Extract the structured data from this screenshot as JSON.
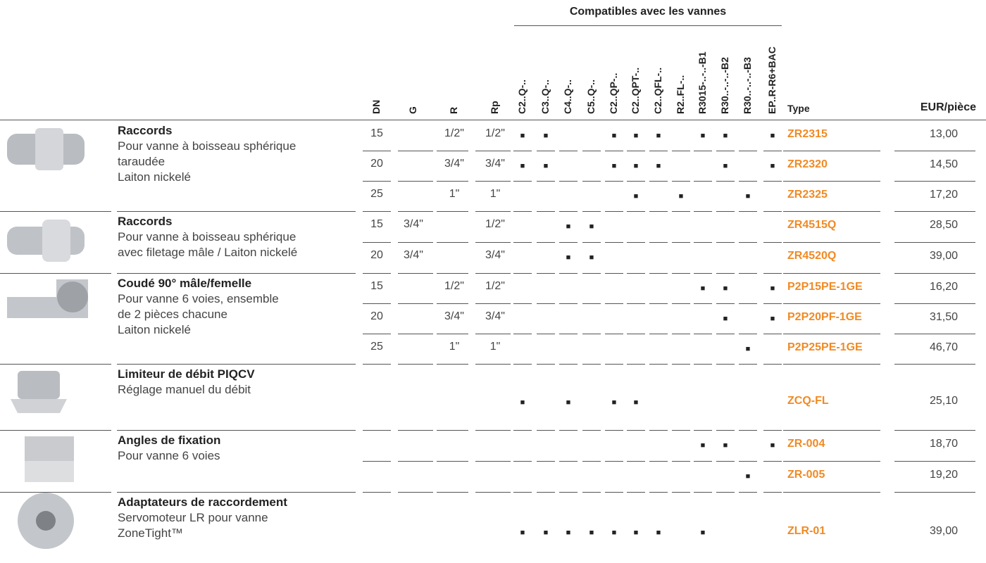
{
  "header": {
    "group_title": "Compatibles avec les vannes",
    "columns": [
      "DN",
      "G",
      "R",
      "Rp"
    ],
    "valves": [
      "C2..Q-..",
      "C3..Q-..",
      "C4..Q-..",
      "C5..Q-..",
      "C2..QP-..",
      "C2..QPT-..",
      "C2..QFL-..",
      "R2..FL-..",
      "R3015-..-..-B1",
      "R30..-..-..-B2",
      "R30..-..-..-B3",
      "EP..R-R6+BAC"
    ],
    "type": "Type",
    "price": "EUR/pièce"
  },
  "groups": [
    {
      "name": "Raccords",
      "description": [
        "Pour vanne à boisseau sphérique",
        "taraudée",
        "Laiton nickelé"
      ],
      "rows": [
        {
          "cells": [
            "15",
            null,
            "1/2\"",
            "1/2\""
          ],
          "compat": [
            "■",
            "■",
            null,
            null,
            "■",
            "■",
            "■",
            null,
            "■",
            "■",
            null,
            "■"
          ],
          "type": "ZR2315",
          "price": "13,00"
        },
        {
          "cells": [
            "20",
            null,
            "3/4\"",
            "3/4\""
          ],
          "compat": [
            "■",
            "■",
            null,
            null,
            "■",
            "■",
            "■",
            null,
            null,
            "■",
            null,
            "■"
          ],
          "type": "ZR2320",
          "price": "14,50"
        },
        {
          "cells": [
            "25",
            null,
            "1\"",
            "1\""
          ],
          "compat": [
            null,
            null,
            null,
            null,
            null,
            "■",
            null,
            "■",
            null,
            null,
            "■",
            null
          ],
          "type": "ZR2325",
          "price": "17,20"
        }
      ]
    },
    {
      "name": "Raccords",
      "description": [
        "Pour vanne à boisseau sphérique",
        "avec filetage mâle / Laiton nickelé"
      ],
      "rows": [
        {
          "cells": [
            "15",
            "3/4\"",
            null,
            "1/2\""
          ],
          "compat": [
            null,
            null,
            "■",
            "■",
            null,
            null,
            null,
            null,
            null,
            null,
            null,
            null
          ],
          "type": "ZR4515Q",
          "price": "28,50"
        },
        {
          "cells": [
            "20",
            "3/4\"",
            null,
            "3/4\""
          ],
          "compat": [
            null,
            null,
            "■",
            "■",
            null,
            null,
            null,
            null,
            null,
            null,
            null,
            null
          ],
          "type": "ZR4520Q",
          "price": "39,00"
        }
      ]
    },
    {
      "name": "Coudé 90° mâle/femelle",
      "description": [
        "Pour vanne 6 voies, ensemble",
        "de 2 pièces chacune",
        "Laiton nickelé"
      ],
      "rows": [
        {
          "cells": [
            "15",
            null,
            "1/2\"",
            "1/2\""
          ],
          "compat": [
            null,
            null,
            null,
            null,
            null,
            null,
            null,
            null,
            "■",
            "■",
            null,
            "■"
          ],
          "type": "P2P15PE-1GE",
          "price": "16,20"
        },
        {
          "cells": [
            "20",
            null,
            "3/4\"",
            "3/4\""
          ],
          "compat": [
            null,
            null,
            null,
            null,
            null,
            null,
            null,
            null,
            null,
            "■",
            null,
            "■"
          ],
          "type": "P2P20PF-1GE",
          "price": "31,50"
        },
        {
          "cells": [
            "25",
            null,
            "1\"",
            "1\""
          ],
          "compat": [
            null,
            null,
            null,
            null,
            null,
            null,
            null,
            null,
            null,
            null,
            "■",
            null
          ],
          "type": "P2P25PE-1GE",
          "price": "46,70"
        }
      ]
    },
    {
      "name": "Limiteur de débit PIQCV",
      "description": [
        "Réglage manuel du débit"
      ],
      "rows": [
        {
          "cells": [
            null,
            null,
            null,
            null
          ],
          "compat": [
            "■",
            null,
            "■",
            null,
            "■",
            "■",
            null,
            null,
            null,
            null,
            null,
            null
          ],
          "type": "ZCQ-FL",
          "price": "25,10"
        }
      ]
    },
    {
      "name": "Angles de fixation",
      "description": [
        "Pour vanne 6 voies"
      ],
      "rows": [
        {
          "cells": [
            null,
            null,
            null,
            null
          ],
          "compat": [
            null,
            null,
            null,
            null,
            null,
            null,
            null,
            null,
            "■",
            "■",
            null,
            "■"
          ],
          "type": "ZR-004",
          "price": "18,70"
        },
        {
          "cells": [
            null,
            null,
            null,
            null
          ],
          "compat": [
            null,
            null,
            null,
            null,
            null,
            null,
            null,
            null,
            null,
            null,
            "■",
            null
          ],
          "type": "ZR-005",
          "price": "19,20"
        }
      ]
    },
    {
      "name": "Adaptateurs de raccordement",
      "description": [
        "Servomoteur LR pour vanne",
        "ZoneTight™"
      ],
      "rows": [
        {
          "cells": [
            null,
            null,
            null,
            null
          ],
          "compat": [
            "■",
            "■",
            "■",
            "■",
            "■",
            "■",
            "■",
            null,
            "■",
            null,
            null,
            null
          ],
          "type": "ZLR-01",
          "price": "39,00"
        }
      ]
    }
  ]
}
